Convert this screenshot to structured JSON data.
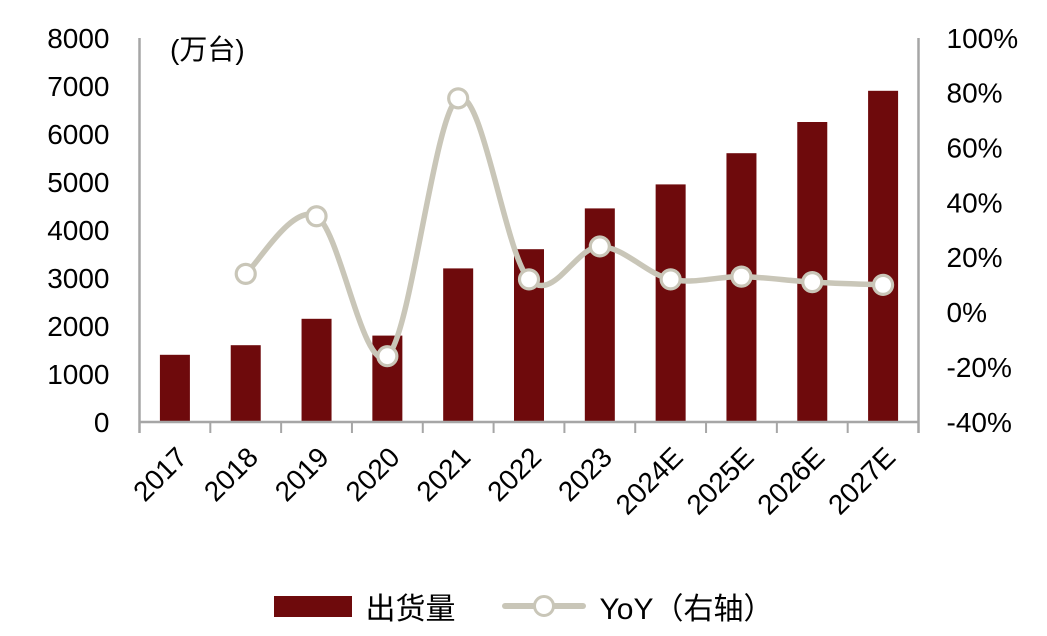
{
  "legend": {
    "bar_label": "出货量",
    "line_label": "YoY（右轴）"
  },
  "chart_data": {
    "type": "bar+line",
    "categories": [
      "2017",
      "2018",
      "2019",
      "2020",
      "2021",
      "2022",
      "2023",
      "2024E",
      "2025E",
      "2026E",
      "2027E"
    ],
    "series": [
      {
        "name": "出货量",
        "type": "bar",
        "axis": "left",
        "unit": "万台",
        "values": [
          1400,
          1600,
          2150,
          1800,
          3200,
          3600,
          4450,
          4950,
          5600,
          6250,
          6900
        ]
      },
      {
        "name": "YoY（右轴）",
        "type": "line",
        "axis": "right",
        "unit": "%",
        "values": [
          null,
          14,
          35,
          -16,
          78,
          12,
          24,
          12,
          13,
          11,
          10
        ]
      }
    ],
    "left_axis": {
      "unit_label": "(万台)",
      "min": 0,
      "max": 8000,
      "step": 1000,
      "tick_labels": [
        "0",
        "1000",
        "2000",
        "3000",
        "4000",
        "5000",
        "6000",
        "7000",
        "8000"
      ]
    },
    "right_axis": {
      "min": -40,
      "max": 100,
      "step": 20,
      "tick_labels": [
        "-40%",
        "-20%",
        "0%",
        "20%",
        "40%",
        "60%",
        "80%",
        "100%"
      ]
    },
    "grid": false,
    "legend_position": "bottom",
    "colors": {
      "bar": "#6E0A0C",
      "line": "#C9C6B8",
      "marker_fill": "#FFFFFF",
      "axis": "#A6A6A6",
      "text": "#000000"
    }
  }
}
